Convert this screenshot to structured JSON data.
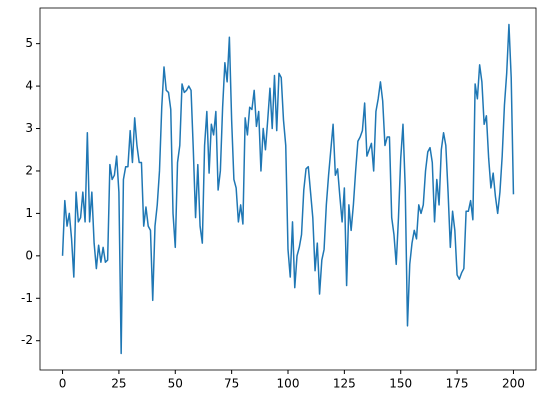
{
  "chart_data": {
    "type": "line",
    "x": [
      0,
      1,
      2,
      3,
      4,
      5,
      6,
      7,
      8,
      9,
      10,
      11,
      12,
      13,
      14,
      15,
      16,
      17,
      18,
      19,
      20,
      21,
      22,
      23,
      24,
      25,
      26,
      27,
      28,
      29,
      30,
      31,
      32,
      33,
      34,
      35,
      36,
      37,
      38,
      39,
      40,
      41,
      42,
      43,
      44,
      45,
      46,
      47,
      48,
      49,
      50,
      51,
      52,
      53,
      54,
      55,
      56,
      57,
      58,
      59,
      60,
      61,
      62,
      63,
      64,
      65,
      66,
      67,
      68,
      69,
      70,
      71,
      72,
      73,
      74,
      75,
      76,
      77,
      78,
      79,
      80,
      81,
      82,
      83,
      84,
      85,
      86,
      87,
      88,
      89,
      90,
      91,
      92,
      93,
      94,
      95,
      96,
      97,
      98,
      99,
      100,
      101,
      102,
      103,
      104,
      105,
      106,
      107,
      108,
      109,
      110,
      111,
      112,
      113,
      114,
      115,
      116,
      117,
      118,
      119,
      120,
      121,
      122,
      123,
      124,
      125,
      126,
      127,
      128,
      129,
      130,
      131,
      132,
      133,
      134,
      135,
      136,
      137,
      138,
      139,
      140,
      141,
      142,
      143,
      144,
      145,
      146,
      147,
      148,
      149,
      150,
      151,
      152,
      153,
      154,
      155,
      156,
      157,
      158,
      159,
      160,
      161,
      162,
      163,
      164,
      165,
      166,
      167,
      168,
      169,
      170,
      171,
      172,
      173,
      174,
      175,
      176,
      177,
      178,
      179,
      180,
      181,
      182,
      183,
      184,
      185,
      186,
      187,
      188,
      189,
      190,
      191,
      192,
      193,
      194,
      195,
      196,
      197,
      198,
      199,
      200
    ],
    "series": [
      {
        "color": "#1f77b4",
        "values": [
          0,
          1.3,
          0.7,
          1.0,
          0.4,
          -0.5,
          1.5,
          0.8,
          0.9,
          1.5,
          0.8,
          2.9,
          0.8,
          1.5,
          0.3,
          -0.3,
          0.25,
          -0.15,
          0.2,
          -0.15,
          -0.1,
          2.15,
          1.8,
          1.9,
          2.35,
          1.5,
          -2.3,
          1.8,
          2.1,
          2.1,
          2.95,
          2.2,
          3.25,
          2.6,
          2.2,
          2.2,
          0.7,
          1.15,
          0.7,
          0.6,
          -1.05,
          0.7,
          1.2,
          2.0,
          3.5,
          4.45,
          3.9,
          3.85,
          3.45,
          1.0,
          0.2,
          2.2,
          2.6,
          4.05,
          3.85,
          3.9,
          4.0,
          3.9,
          2.5,
          0.9,
          2.15,
          0.7,
          0.3,
          2.6,
          3.4,
          1.95,
          3.1,
          2.85,
          3.4,
          1.55,
          2.0,
          3.5,
          4.55,
          4.1,
          5.15,
          3.2,
          1.8,
          1.6,
          0.8,
          1.2,
          0.75,
          3.25,
          2.85,
          3.5,
          3.45,
          3.9,
          3.05,
          3.4,
          2.0,
          3.0,
          2.5,
          3.2,
          3.95,
          3.0,
          4.25,
          2.95,
          4.3,
          4.2,
          3.2,
          2.6,
          0.15,
          -0.5,
          0.8,
          -0.75,
          0,
          0.2,
          0.5,
          1.55,
          2.05,
          2.1,
          1.5,
          0.9,
          -0.35,
          0.3,
          -0.9,
          -0.1,
          0.15,
          1.2,
          1.9,
          2.5,
          3.1,
          1.9,
          2.05,
          1.4,
          0.8,
          1.6,
          -0.7,
          1.2,
          0.6,
          1.2,
          2.0,
          2.7,
          2.8,
          2.95,
          3.6,
          2.35,
          2.5,
          2.65,
          2.0,
          3.4,
          3.7,
          4.1,
          3.65,
          2.6,
          2.8,
          2.8,
          0.9,
          0.5,
          -0.2,
          0.9,
          2.3,
          3.1,
          1.6,
          -1.65,
          -0.2,
          0.3,
          0.6,
          0.4,
          1.2,
          1.0,
          1.2,
          2.0,
          2.45,
          2.55,
          2.2,
          0.8,
          1.8,
          1.2,
          2.5,
          2.9,
          2.6,
          1.5,
          0.2,
          1.05,
          0.6,
          -0.45,
          -0.55,
          -0.4,
          -0.3,
          1.05,
          1.05,
          1.3,
          0.85,
          4.05,
          3.7,
          4.5,
          4.1,
          3.1,
          3.3,
          2.3,
          1.6,
          1.95,
          1.4,
          1.0,
          1.5,
          2.35,
          3.55,
          4.3,
          5.45,
          4.2,
          1.45
        ]
      }
    ],
    "xlim": [
      -10,
      210
    ],
    "xticks": [
      0,
      25,
      50,
      75,
      100,
      125,
      150,
      175,
      200
    ],
    "ylim": [
      -2.69,
      5.84
    ],
    "yticks": [
      -2,
      -1,
      0,
      1,
      2,
      3,
      4,
      5
    ]
  }
}
